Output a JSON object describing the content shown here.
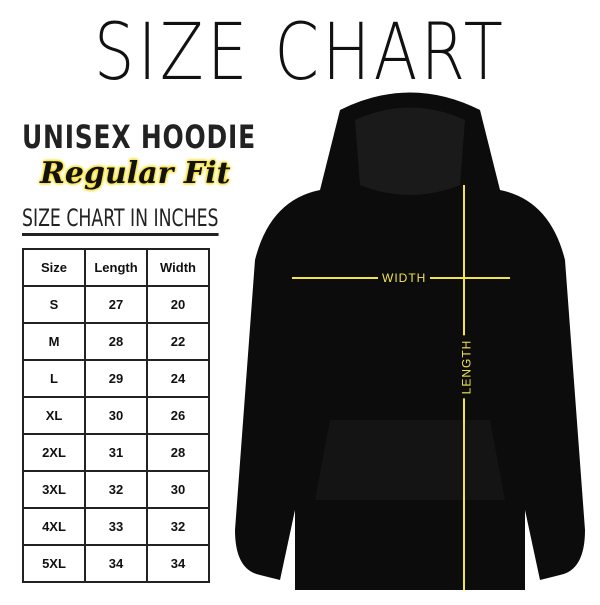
{
  "title": "SIZE CHART",
  "product": "UNISEX HOODIE",
  "fit": "Regular Fit",
  "table_caption": "SIZE CHART IN INCHES",
  "table": {
    "headers": [
      "Size",
      "Length",
      "Width"
    ],
    "rows": [
      [
        "S",
        "27",
        "20"
      ],
      [
        "M",
        "28",
        "22"
      ],
      [
        "L",
        "29",
        "24"
      ],
      [
        "XL",
        "30",
        "26"
      ],
      [
        "2XL",
        "31",
        "28"
      ],
      [
        "3XL",
        "32",
        "30"
      ],
      [
        "4XL",
        "33",
        "32"
      ],
      [
        "5XL",
        "34",
        "34"
      ]
    ]
  },
  "diagram": {
    "width_label": "WIDTH",
    "length_label": "LENGTH",
    "line_color": "#f2e34c",
    "garment_color": "#0c0c0c"
  }
}
